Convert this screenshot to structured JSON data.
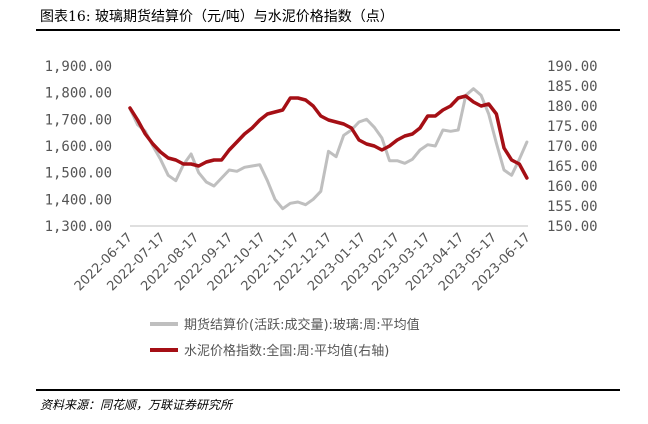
{
  "title": "图表16:  玻璃期货结算价（元/吨）与水泥价格指数（点）",
  "source": "资料来源：同花顺，万联证券研究所",
  "footer_partial": "",
  "colors": {
    "glass": "#bfbfbf",
    "cement": "#a50f15"
  },
  "chart_data": {
    "type": "line",
    "categories": [
      "2022-06-17",
      "2022-07-17",
      "2022-08-17",
      "2022-09-17",
      "2022-10-17",
      "2022-11-17",
      "2022-12-17",
      "2023-01-17",
      "2023-02-17",
      "2023-03-17",
      "2023-04-17",
      "2023-05-17",
      "2023-06-17"
    ],
    "y_left": {
      "min": 1300,
      "max": 1900,
      "ticks": [
        "1,300.00",
        "1,400.00",
        "1,500.00",
        "1,600.00",
        "1,700.00",
        "1,800.00",
        "1,900.00"
      ]
    },
    "y_right": {
      "min": 150,
      "max": 190,
      "ticks": [
        "150.00",
        "155.00",
        "160.00",
        "165.00",
        "170.00",
        "175.00",
        "180.00",
        "185.00",
        "190.00"
      ]
    },
    "series": [
      {
        "name": "期货结算价(活跃:成交量):玻璃:周:平均值",
        "axis": "left",
        "x": [
          "2022-06-17",
          "2022-06-24",
          "2022-07-01",
          "2022-07-08",
          "2022-07-15",
          "2022-07-22",
          "2022-07-29",
          "2022-08-05",
          "2022-08-12",
          "2022-08-19",
          "2022-08-26",
          "2022-09-02",
          "2022-09-09",
          "2022-09-16",
          "2022-09-23",
          "2022-09-30",
          "2022-10-07",
          "2022-10-14",
          "2022-10-21",
          "2022-10-28",
          "2022-11-04",
          "2022-11-11",
          "2022-11-18",
          "2022-11-25",
          "2022-12-02",
          "2022-12-09",
          "2022-12-16",
          "2022-12-23",
          "2022-12-30",
          "2023-01-06",
          "2023-01-13",
          "2023-01-20",
          "2023-01-27",
          "2023-02-03",
          "2023-02-10",
          "2023-02-17",
          "2023-02-24",
          "2023-03-03",
          "2023-03-10",
          "2023-03-17",
          "2023-03-24",
          "2023-03-31",
          "2023-04-07",
          "2023-04-14",
          "2023-04-21",
          "2023-04-28",
          "2023-05-05",
          "2023-05-12",
          "2023-05-19",
          "2023-05-26",
          "2023-06-02",
          "2023-06-09",
          "2023-06-16"
        ],
        "y": [
          1740,
          1680,
          1655,
          1600,
          1550,
          1490,
          1470,
          1530,
          1570,
          1500,
          1465,
          1450,
          1480,
          1510,
          1505,
          1520,
          1525,
          1530,
          1470,
          1400,
          1365,
          1385,
          1390,
          1380,
          1400,
          1430,
          1580,
          1560,
          1640,
          1660,
          1690,
          1700,
          1670,
          1630,
          1545,
          1545,
          1535,
          1550,
          1585,
          1605,
          1600,
          1660,
          1655,
          1660,
          1790,
          1815,
          1790,
          1720,
          1610,
          1510,
          1490,
          1550,
          1615
        ]
      },
      {
        "name": "水泥价格指数:全国:周:平均值(右轴)",
        "axis": "right",
        "x": [
          "2022-06-17",
          "2022-06-24",
          "2022-07-01",
          "2022-07-08",
          "2022-07-15",
          "2022-07-22",
          "2022-07-29",
          "2022-08-05",
          "2022-08-12",
          "2022-08-19",
          "2022-08-26",
          "2022-09-02",
          "2022-09-09",
          "2022-09-16",
          "2022-09-23",
          "2022-09-30",
          "2022-10-07",
          "2022-10-14",
          "2022-10-21",
          "2022-10-28",
          "2022-11-04",
          "2022-11-11",
          "2022-11-18",
          "2022-11-25",
          "2022-12-02",
          "2022-12-09",
          "2022-12-16",
          "2022-12-23",
          "2022-12-30",
          "2023-01-06",
          "2023-01-13",
          "2023-01-20",
          "2023-01-27",
          "2023-02-03",
          "2023-02-10",
          "2023-02-17",
          "2023-02-24",
          "2023-03-03",
          "2023-03-10",
          "2023-03-17",
          "2023-03-24",
          "2023-03-31",
          "2023-04-07",
          "2023-04-14",
          "2023-04-21",
          "2023-04-28",
          "2023-05-05",
          "2023-05-12",
          "2023-05-19",
          "2023-05-26",
          "2023-06-02",
          "2023-06-09",
          "2023-06-16"
        ],
        "y": [
          179.5,
          176.5,
          173.0,
          170.5,
          168.5,
          167.0,
          166.5,
          165.5,
          165.5,
          165.0,
          166.0,
          166.5,
          166.5,
          169.0,
          171.0,
          173.0,
          174.5,
          176.5,
          178.0,
          178.5,
          179.0,
          182.0,
          182.0,
          181.5,
          180.0,
          177.5,
          176.5,
          176.0,
          175.5,
          174.5,
          171.5,
          170.5,
          170.0,
          169.0,
          170.0,
          171.5,
          172.5,
          173.0,
          174.5,
          177.5,
          177.5,
          179.0,
          180.0,
          182.0,
          182.5,
          181.0,
          180.0,
          180.5,
          178.0,
          169.5,
          166.5,
          165.5,
          162.0
        ]
      }
    ],
    "legend": "bottom",
    "grid": false
  }
}
